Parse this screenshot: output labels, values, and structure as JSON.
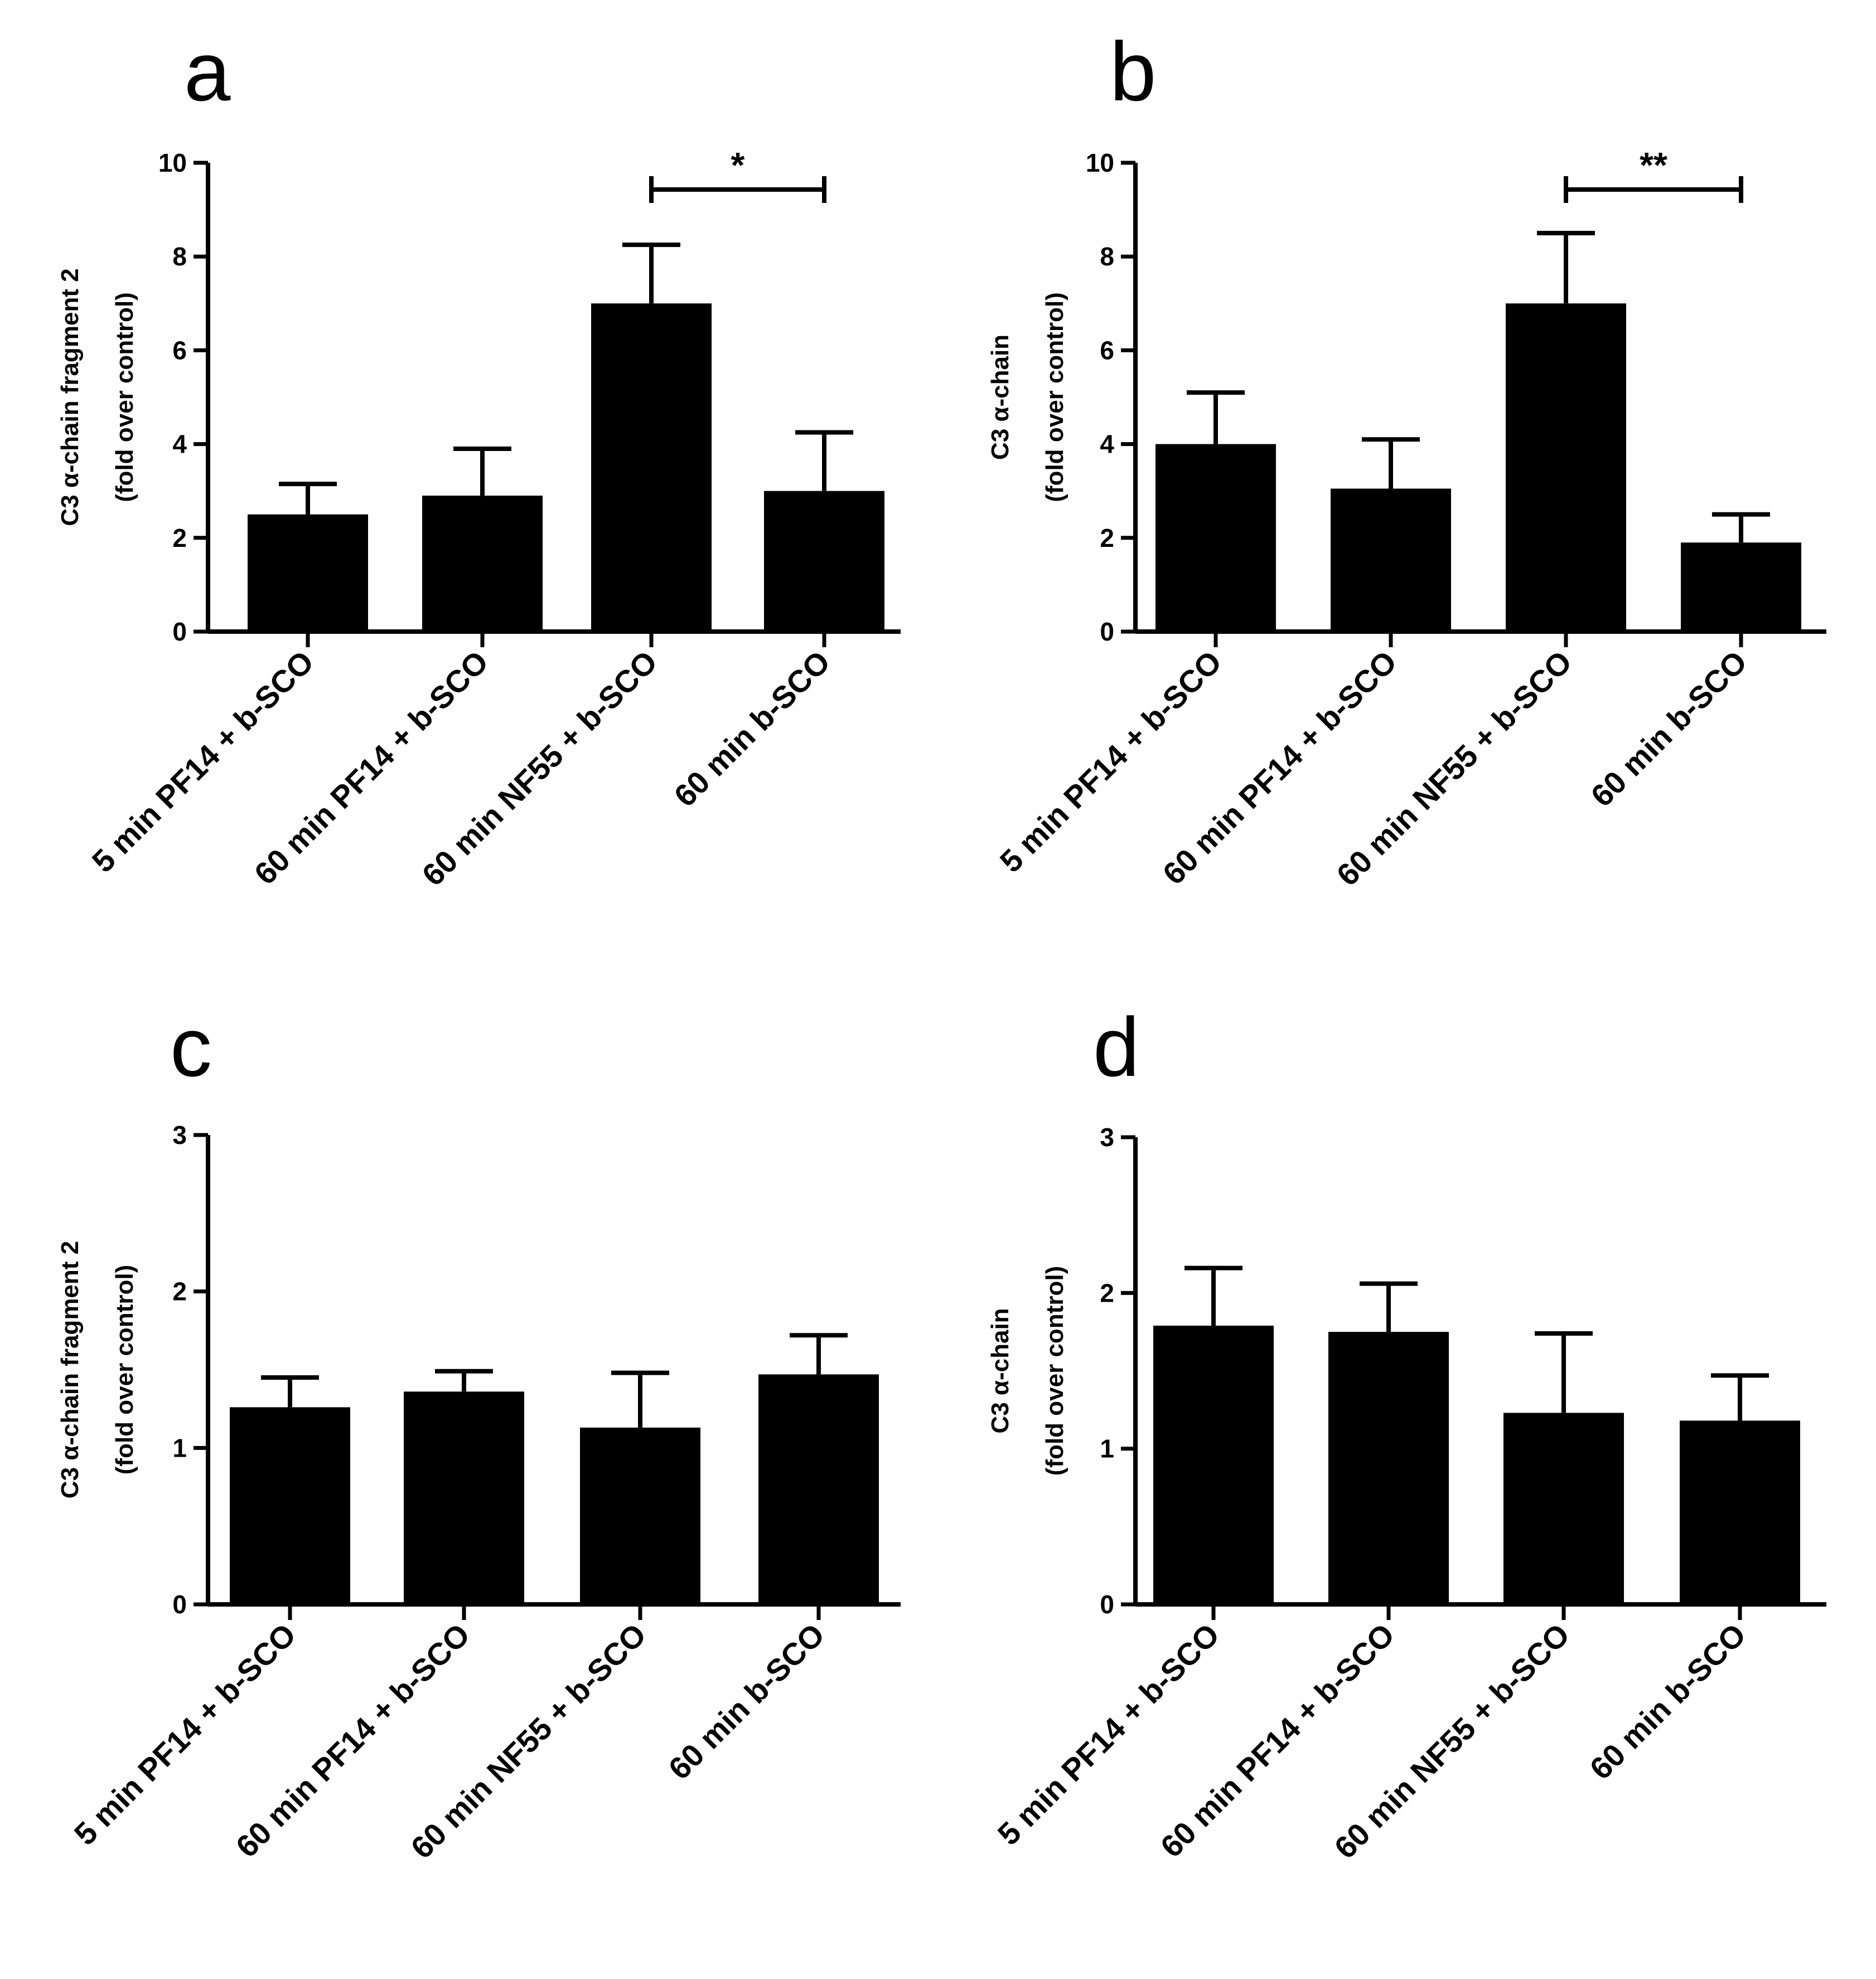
{
  "chart_data": [
    {
      "panel": "a",
      "type": "bar",
      "ylabel_line1": "C3 α-chain fragment 2",
      "ylabel_line2": "(fold over control)",
      "ylim": [
        0,
        10
      ],
      "yticks": [
        0,
        2,
        4,
        6,
        8,
        10
      ],
      "categories": [
        "5 min PF14 + b-SCO",
        "60 min PF14 + b-SCO",
        "60 min NF55 + b-SCO",
        "60 min b-SCO"
      ],
      "values": [
        2.5,
        2.9,
        7.0,
        3.0
      ],
      "errors": [
        0.65,
        1.0,
        1.25,
        1.25
      ],
      "significance": [
        {
          "from": 2,
          "to": 3,
          "label": "*"
        }
      ],
      "bar_color": "#000000"
    },
    {
      "panel": "b",
      "type": "bar",
      "ylabel_line1": "C3 α-chain",
      "ylabel_line2": "(fold over control)",
      "ylim": [
        0,
        10
      ],
      "yticks": [
        0,
        2,
        4,
        6,
        8,
        10
      ],
      "categories": [
        "5 min PF14 + b-SCO",
        "60 min PF14 + b-SCO",
        "60 min NF55 + b-SCO",
        "60 min b-SCO"
      ],
      "values": [
        4.0,
        3.05,
        7.0,
        1.9
      ],
      "errors": [
        1.1,
        1.05,
        1.5,
        0.6
      ],
      "significance": [
        {
          "from": 2,
          "to": 3,
          "label": "**"
        }
      ],
      "bar_color": "#000000"
    },
    {
      "panel": "c",
      "type": "bar",
      "ylabel_line1": "C3 α-chain fragment 2",
      "ylabel_line2": "(fold over control)",
      "ylim": [
        0,
        3
      ],
      "yticks": [
        0,
        1,
        2,
        3
      ],
      "categories": [
        "5 min PF14 + b-SCO",
        "60 min PF14 + b-SCO",
        "60 min NF55 + b-SCO",
        "60 min b-SCO"
      ],
      "values": [
        1.26,
        1.36,
        1.13,
        1.47
      ],
      "errors": [
        0.19,
        0.13,
        0.35,
        0.25
      ],
      "significance": [],
      "bar_color": "#000000"
    },
    {
      "panel": "d",
      "type": "bar",
      "ylabel_line1": "C3 α-chain",
      "ylabel_line2": "(fold over control)",
      "ylim": [
        0,
        3
      ],
      "yticks": [
        0,
        1,
        2,
        3
      ],
      "categories": [
        "5 min PF14 + b-SCO",
        "60 min PF14 + b-SCO",
        "60 min NF55 + b-SCO",
        "60 min b-SCO"
      ],
      "values": [
        1.79,
        1.75,
        1.23,
        1.18
      ],
      "errors": [
        0.37,
        0.31,
        0.51,
        0.29
      ],
      "significance": [],
      "bar_color": "#000000"
    }
  ]
}
